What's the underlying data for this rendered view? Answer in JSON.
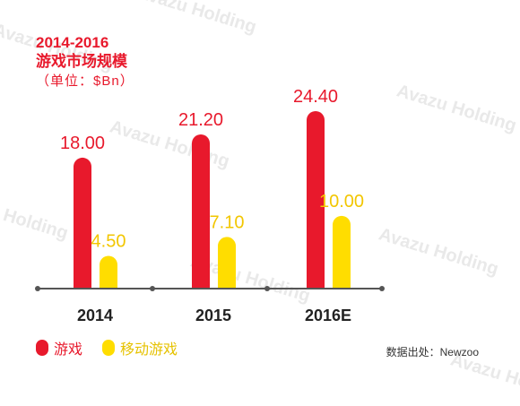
{
  "watermark": "Avazu Holding",
  "title": {
    "line1": "2014-2016",
    "line2": "游戏市场规模",
    "line3": "（单位：$Bn）"
  },
  "legend": [
    {
      "label": "游戏",
      "color": "#e8192c"
    },
    {
      "label": "移动游戏",
      "color": "#ffdd00"
    }
  ],
  "source": "数据出处：Newzoo",
  "chart_data": {
    "type": "bar",
    "categories": [
      "2014",
      "2015",
      "2016E"
    ],
    "series": [
      {
        "name": "游戏",
        "values": [
          18.0,
          21.2,
          24.4
        ],
        "labels": [
          "18.00",
          "21.20",
          "24.40"
        ],
        "color": "#e8192c"
      },
      {
        "name": "移动游戏",
        "values": [
          4.5,
          7.1,
          10.0
        ],
        "labels": [
          "4.50",
          "7.10",
          "10.00"
        ],
        "color": "#ffdd00"
      }
    ],
    "ylim": [
      0,
      24.4
    ],
    "grid": false,
    "legend_position": "bottom-left"
  }
}
